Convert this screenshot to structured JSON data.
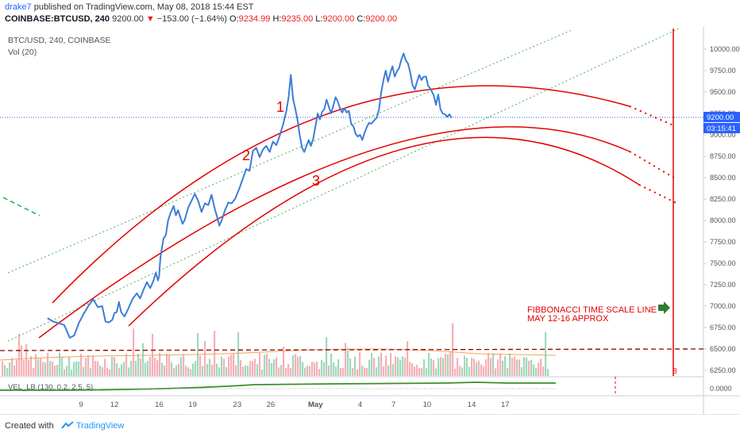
{
  "header": {
    "author": "drake7",
    "published": "published on TradingView.com, May 08, 2018 15:44 EST",
    "symbol": "COINBASE:BTCUSD, 240",
    "last": "9200.00",
    "change": "−153.00 (−1.64%)",
    "open": "9234.99",
    "high": "9235.00",
    "low": "9200.00",
    "close": "9200.00",
    "o_label": "O:",
    "h_label": "H:",
    "l_label": "L:",
    "c_label": "C:"
  },
  "pane": {
    "title": "BTC/USD, 240, COINBASE",
    "vol_label": "Vol (20)",
    "price_badge": "9200.00",
    "countdown_badge": "03:15:41",
    "indicator_label": "VEL_LB (130, 0.2, 2.5, 5)",
    "indicator_value": "0.0000"
  },
  "annotations": {
    "arc1": "1",
    "arc2": "2",
    "arc3": "3",
    "fib_line1": "FIBBONACCI TIME SCALE LINE",
    "fib_line2": "MAY 12-16 APPROX",
    "fib_marker": "8"
  },
  "colors": {
    "price_line": "#3d7dd8",
    "arcs": "#e50000",
    "channel": "#4caf50",
    "vol_up": "#8fd1b3",
    "vol_down": "#f4a3a8",
    "indicator": "#3a8f2b",
    "badge": "#2962ff"
  },
  "footer": {
    "created_with": "Created with",
    "brand": "TradingView"
  },
  "chart_data": {
    "type": "line",
    "title": "BTC/USD, 240, COINBASE",
    "x_ticks": [
      "9",
      "12",
      "16",
      "19",
      "23",
      "26",
      "May",
      "4",
      "7",
      "10",
      "14",
      "17"
    ],
    "y_ticks": [
      6250,
      6500,
      6750,
      7000,
      7250,
      7500,
      7750,
      8000,
      8250,
      8500,
      8750,
      9000,
      9250,
      9500,
      9750,
      10000
    ],
    "ylim": [
      6200,
      10100
    ],
    "reference_level": 6500,
    "current_price": 9200,
    "series": [
      {
        "values": [
          [
            6.0,
            6860
          ],
          [
            6.5,
            6820
          ],
          [
            7.0,
            6800
          ],
          [
            7.5,
            6780
          ],
          [
            8.0,
            6630
          ],
          [
            8.4,
            6660
          ],
          [
            8.8,
            6800
          ],
          [
            9.2,
            6900
          ],
          [
            9.7,
            7010
          ],
          [
            10.1,
            7080
          ],
          [
            10.5,
            6990
          ],
          [
            10.9,
            7000
          ],
          [
            11.2,
            6820
          ],
          [
            11.5,
            6810
          ],
          [
            11.8,
            6840
          ],
          [
            12.0,
            6920
          ],
          [
            12.2,
            6930
          ],
          [
            12.4,
            7050
          ],
          [
            12.6,
            6930
          ],
          [
            12.9,
            6880
          ],
          [
            13.2,
            6960
          ],
          [
            13.6,
            7080
          ],
          [
            14.0,
            7150
          ],
          [
            14.3,
            7090
          ],
          [
            14.6,
            7190
          ],
          [
            14.9,
            7280
          ],
          [
            15.2,
            7210
          ],
          [
            15.5,
            7300
          ],
          [
            15.7,
            7390
          ],
          [
            15.9,
            7300
          ],
          [
            16.0,
            7350
          ],
          [
            16.1,
            7540
          ],
          [
            16.2,
            7640
          ],
          [
            16.4,
            7790
          ],
          [
            16.6,
            7830
          ],
          [
            16.8,
            8000
          ],
          [
            17.0,
            8080
          ],
          [
            17.3,
            8170
          ],
          [
            17.5,
            8060
          ],
          [
            17.7,
            8120
          ],
          [
            17.9,
            8040
          ],
          [
            18.1,
            7960
          ],
          [
            18.3,
            8010
          ],
          [
            18.6,
            8150
          ],
          [
            18.9,
            8230
          ],
          [
            19.2,
            8310
          ],
          [
            19.5,
            8230
          ],
          [
            19.8,
            8100
          ],
          [
            20.1,
            8200
          ],
          [
            20.4,
            8180
          ],
          [
            20.7,
            8300
          ],
          [
            21.0,
            8130
          ],
          [
            21.2,
            8040
          ],
          [
            21.4,
            7940
          ],
          [
            21.6,
            8000
          ],
          [
            21.9,
            8120
          ],
          [
            22.2,
            8210
          ],
          [
            22.5,
            8200
          ],
          [
            22.8,
            8250
          ],
          [
            23.2,
            8380
          ],
          [
            23.5,
            8490
          ],
          [
            23.8,
            8600
          ],
          [
            24.1,
            8580
          ],
          [
            24.4,
            8810
          ],
          [
            24.7,
            8850
          ],
          [
            25.0,
            8740
          ],
          [
            25.3,
            8830
          ],
          [
            25.6,
            8870
          ],
          [
            25.9,
            8800
          ],
          [
            26.2,
            8920
          ],
          [
            26.5,
            8880
          ],
          [
            26.8,
            8990
          ],
          [
            27.1,
            9120
          ],
          [
            27.4,
            9280
          ],
          [
            27.6,
            9440
          ],
          [
            27.8,
            9700
          ],
          [
            28.0,
            9420
          ],
          [
            28.2,
            9300
          ],
          [
            28.4,
            9170
          ],
          [
            28.6,
            8990
          ],
          [
            28.8,
            8850
          ],
          [
            29.0,
            8800
          ],
          [
            29.2,
            8870
          ],
          [
            29.4,
            8940
          ],
          [
            29.6,
            8870
          ],
          [
            29.8,
            8950
          ],
          [
            30.0,
            9100
          ],
          [
            30.2,
            9250
          ],
          [
            30.4,
            9180
          ],
          [
            30.6,
            9270
          ],
          [
            30.8,
            9300
          ],
          [
            31.0,
            9410
          ],
          [
            31.2,
            9330
          ],
          [
            31.4,
            9250
          ],
          [
            31.6,
            9340
          ],
          [
            31.8,
            9440
          ],
          [
            32.0,
            9390
          ],
          [
            32.2,
            9310
          ],
          [
            32.4,
            9260
          ],
          [
            32.6,
            9310
          ],
          [
            32.8,
            9260
          ],
          [
            33.0,
            9280
          ],
          [
            33.2,
            9130
          ],
          [
            33.4,
            9100
          ],
          [
            33.6,
            9010
          ],
          [
            33.8,
            8980
          ],
          [
            34.0,
            9000
          ],
          [
            34.2,
            8940
          ],
          [
            34.4,
            9020
          ],
          [
            34.6,
            9090
          ],
          [
            34.8,
            9140
          ],
          [
            35.0,
            9130
          ],
          [
            35.2,
            9160
          ],
          [
            35.5,
            9200
          ],
          [
            35.7,
            9300
          ],
          [
            35.9,
            9500
          ],
          [
            36.1,
            9640
          ],
          [
            36.3,
            9750
          ],
          [
            36.5,
            9620
          ],
          [
            36.7,
            9720
          ],
          [
            36.9,
            9800
          ],
          [
            37.1,
            9680
          ],
          [
            37.3,
            9740
          ],
          [
            37.5,
            9780
          ],
          [
            37.7,
            9880
          ],
          [
            37.9,
            9950
          ],
          [
            38.1,
            9870
          ],
          [
            38.3,
            9830
          ],
          [
            38.5,
            9720
          ],
          [
            38.7,
            9580
          ],
          [
            38.9,
            9530
          ],
          [
            39.1,
            9620
          ],
          [
            39.3,
            9700
          ],
          [
            39.5,
            9640
          ],
          [
            39.7,
            9680
          ],
          [
            39.9,
            9680
          ],
          [
            40.1,
            9570
          ],
          [
            40.3,
            9540
          ],
          [
            40.6,
            9460
          ],
          [
            40.8,
            9350
          ],
          [
            41.0,
            9470
          ],
          [
            41.2,
            9300
          ],
          [
            41.4,
            9250
          ],
          [
            41.6,
            9240
          ],
          [
            41.8,
            9210
          ],
          [
            42.0,
            9240
          ],
          [
            42.2,
            9200
          ]
        ]
      }
    ]
  }
}
